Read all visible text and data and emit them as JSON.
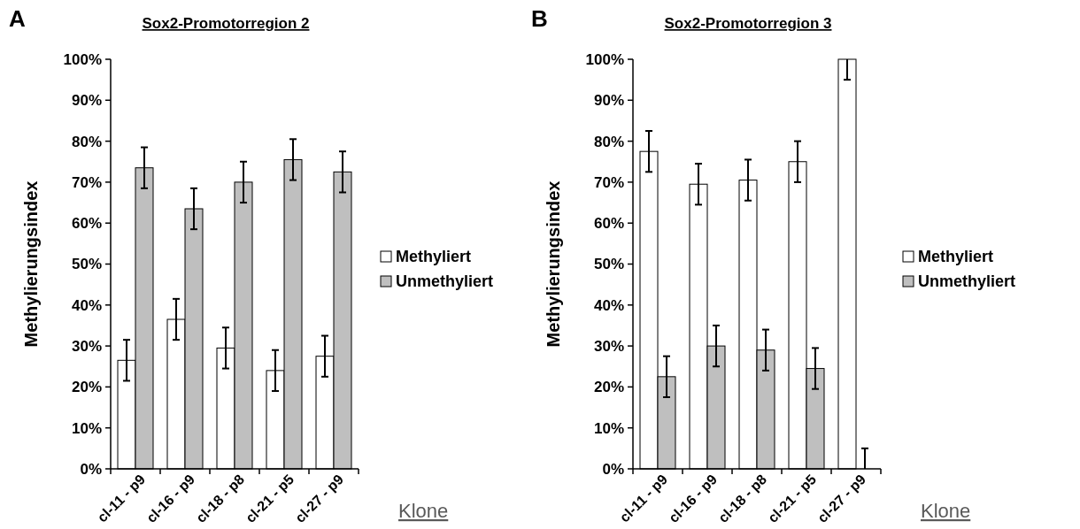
{
  "chart_data": [
    {
      "type": "bar",
      "title": "Sox2-Promotorregion 2",
      "xlabel": "Klone",
      "ylabel": "Methylierungsindex",
      "annotations": [
        "A"
      ],
      "categories": [
        "cl-11 - p9",
        "cl-16 - p9",
        "cl-18 - p8",
        "cl-21 - p5",
        "cl-27 - p9"
      ],
      "series": [
        {
          "name": "Methyliert",
          "color": "#ffffff",
          "values": [
            26.5,
            36.5,
            29.5,
            24,
            27.5
          ],
          "errors": [
            5,
            5,
            5,
            5,
            5
          ]
        },
        {
          "name": "Unmethyliert",
          "color": "#bfbfbf",
          "values": [
            73.5,
            63.5,
            70,
            75.5,
            72.5
          ],
          "errors": [
            5,
            5,
            5,
            5,
            5
          ]
        }
      ],
      "ylim": [
        0,
        100
      ],
      "yticks": [
        {
          "value": 0,
          "label": "0%"
        },
        {
          "value": 10,
          "label": "10%"
        },
        {
          "value": 20,
          "label": "20%"
        },
        {
          "value": 30,
          "label": "30%"
        },
        {
          "value": 40,
          "label": "40%"
        },
        {
          "value": 50,
          "label": "50%"
        },
        {
          "value": 60,
          "label": "60%"
        },
        {
          "value": 70,
          "label": "70%"
        },
        {
          "value": 80,
          "label": "80%"
        },
        {
          "value": 90,
          "label": "90%"
        },
        {
          "value": 100,
          "label": "100%"
        }
      ],
      "grid": false,
      "legend": "right"
    },
    {
      "type": "bar",
      "title": "Sox2-Promotorregion 3",
      "xlabel": "Klone",
      "ylabel": "Methylierungsindex",
      "annotations": [
        "B"
      ],
      "categories": [
        "cl-11 - p9",
        "cl-16 - p9",
        "cl-18 - p8",
        "cl-21 - p5",
        "cl-27 - p9"
      ],
      "series": [
        {
          "name": "Methyliert",
          "color": "#ffffff",
          "values": [
            77.5,
            69.5,
            70.5,
            75,
            100
          ],
          "errors": [
            5,
            5,
            5,
            5,
            [
              95,
              100
            ]
          ]
        },
        {
          "name": "Unmethyliert",
          "color": "#bfbfbf",
          "values": [
            22.5,
            30,
            29,
            24.5,
            0
          ],
          "errors": [
            5,
            5,
            5,
            5,
            [
              0,
              5
            ]
          ]
        }
      ],
      "ylim": [
        0,
        100
      ],
      "yticks": [
        {
          "value": 0,
          "label": "0%"
        },
        {
          "value": 10,
          "label": "10%"
        },
        {
          "value": 20,
          "label": "20%"
        },
        {
          "value": 30,
          "label": "30%"
        },
        {
          "value": 40,
          "label": "40%"
        },
        {
          "value": 50,
          "label": "50%"
        },
        {
          "value": 60,
          "label": "60%"
        },
        {
          "value": 70,
          "label": "70%"
        },
        {
          "value": 80,
          "label": "80%"
        },
        {
          "value": 90,
          "label": "90%"
        },
        {
          "value": 100,
          "label": "100%"
        }
      ],
      "grid": false,
      "legend": "right"
    }
  ]
}
